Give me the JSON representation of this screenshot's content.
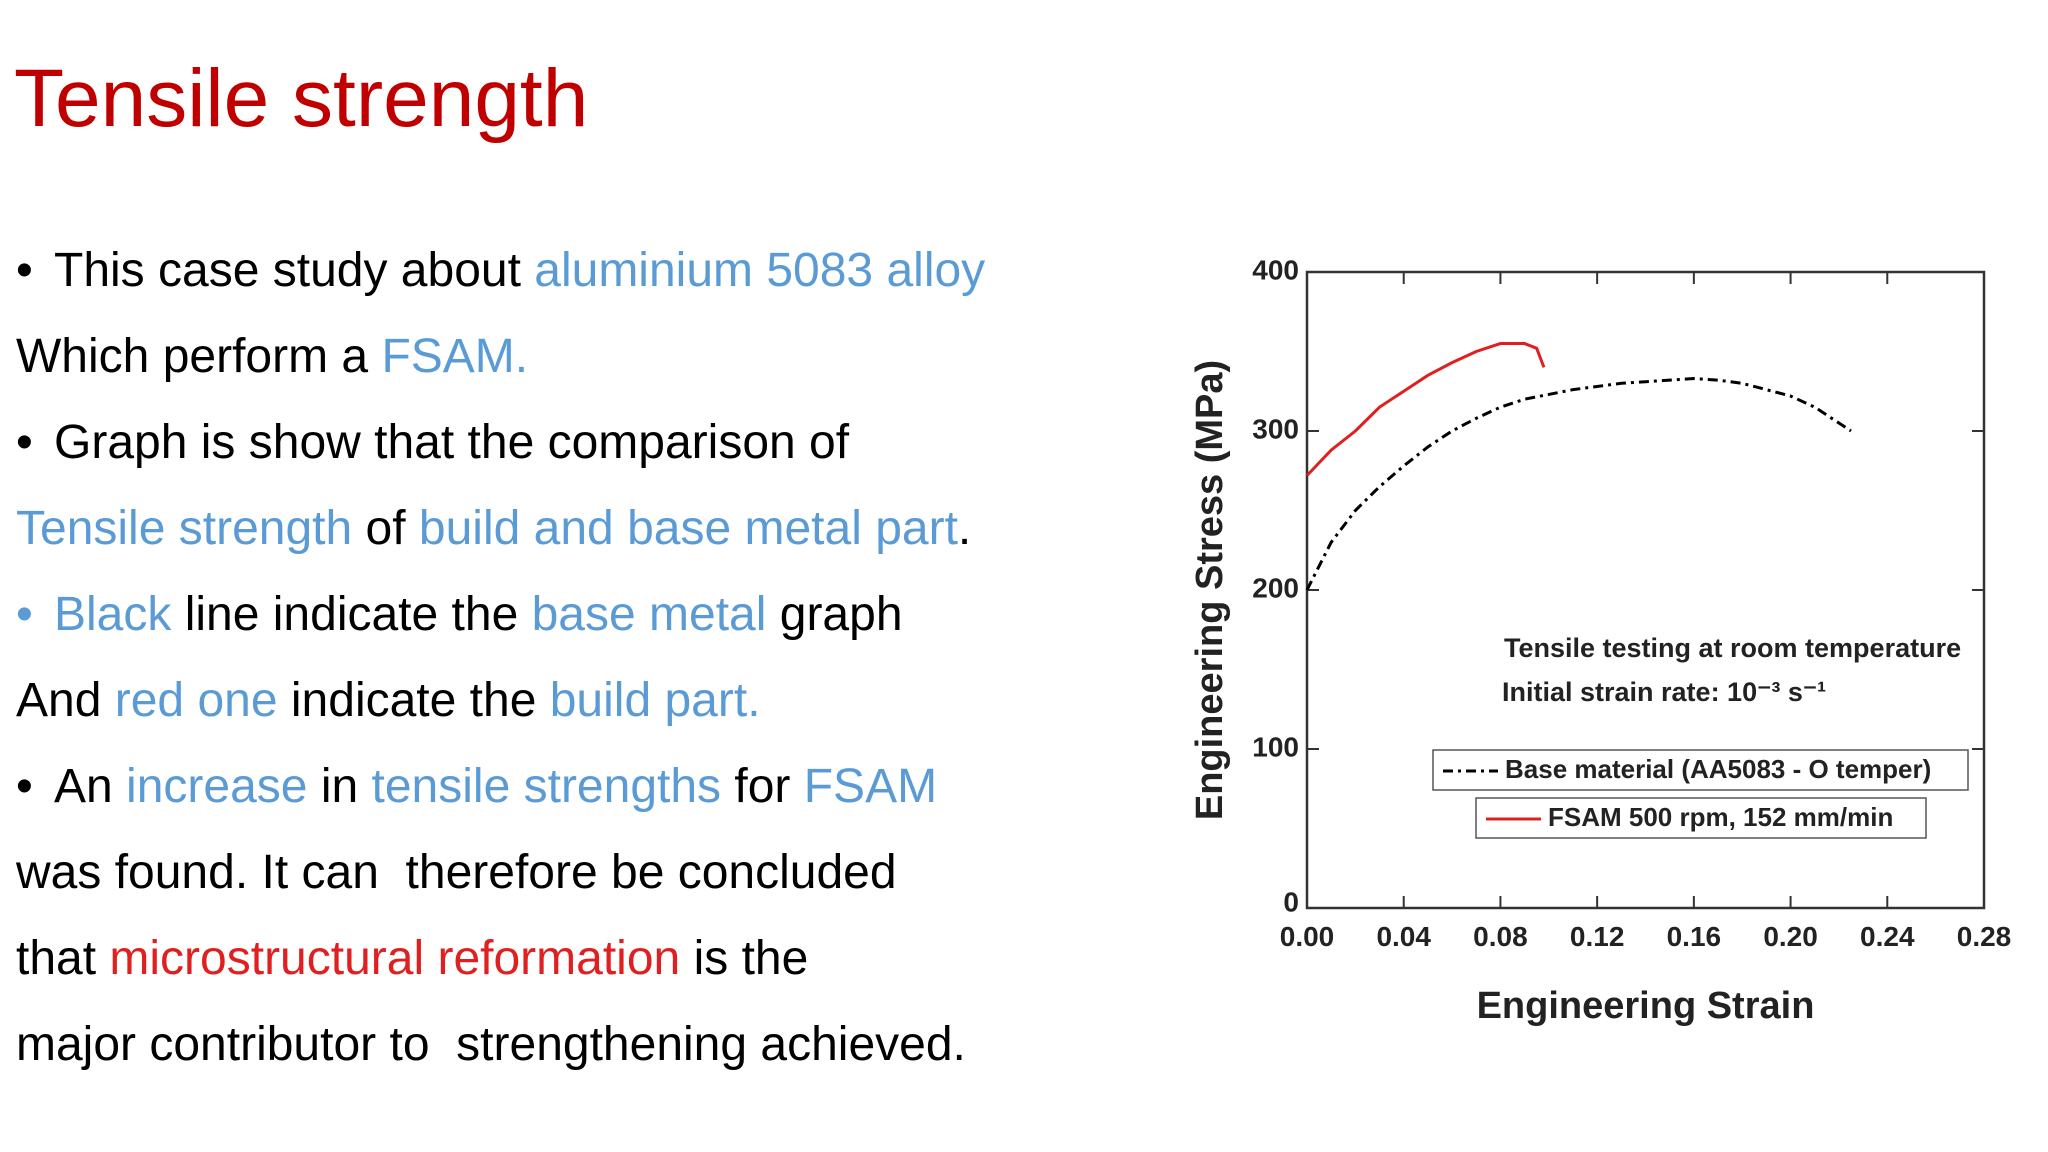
{
  "title": "Tensile strength",
  "lines": [
    {
      "bullet_color": "#000000",
      "segments": [
        {
          "text": "This case study about ",
          "color": "#000000"
        },
        {
          "text": "aluminium 5083 alloy",
          "color": "#5b9bd5"
        }
      ]
    },
    {
      "segments": [
        {
          "text": "Which perform a ",
          "color": "#000000"
        },
        {
          "text": "FSAM.",
          "color": "#5b9bd5"
        }
      ]
    },
    {
      "bullet_color": "#000000",
      "segments": [
        {
          "text": "Graph is show that the comparison of",
          "color": "#000000"
        }
      ]
    },
    {
      "segments": [
        {
          "text": "Tensile strength",
          "color": "#5b9bd5"
        },
        {
          "text": " of ",
          "color": "#000000"
        },
        {
          "text": "build and base metal part",
          "color": "#5b9bd5"
        },
        {
          "text": ".",
          "color": "#000000"
        }
      ]
    },
    {
      "bullet_color": "#5b9bd5",
      "segments": [
        {
          "text": "Black",
          "color": "#5b9bd5"
        },
        {
          "text": " line indicate the ",
          "color": "#000000"
        },
        {
          "text": "base metal",
          "color": "#5b9bd5"
        },
        {
          "text": " graph",
          "color": "#000000"
        }
      ]
    },
    {
      "segments": [
        {
          "text": "And ",
          "color": "#000000"
        },
        {
          "text": "red one",
          "color": "#5b9bd5"
        },
        {
          "text": " indicate the ",
          "color": "#000000"
        },
        {
          "text": "build part.",
          "color": "#5b9bd5"
        }
      ]
    },
    {
      "bullet_color": "#000000",
      "segments": [
        {
          "text": "An ",
          "color": "#000000"
        },
        {
          "text": "increase",
          "color": "#5b9bd5"
        },
        {
          "text": " in ",
          "color": "#000000"
        },
        {
          "text": "tensile strengths",
          "color": "#5b9bd5"
        },
        {
          "text": " for ",
          "color": "#000000"
        },
        {
          "text": "FSAM",
          "color": "#5b9bd5"
        }
      ]
    },
    {
      "segments": [
        {
          "text": "was found. It can  therefore be concluded",
          "color": "#000000"
        }
      ]
    },
    {
      "segments": [
        {
          "text": "that ",
          "color": "#000000"
        },
        {
          "text": "microstructural reformation",
          "color": "#e02020"
        },
        {
          "text": " is the",
          "color": "#000000"
        }
      ]
    },
    {
      "segments": [
        {
          "text": "major contributor to  strengthening achieved.",
          "color": "#000000"
        }
      ]
    }
  ],
  "chart_data": {
    "type": "line",
    "xlabel": "Engineering Strain",
    "ylabel": "Engineering Stress (MPa)",
    "annotations": [
      "Tensile testing at room temperature",
      "Initial strain rate: 10⁻³ s⁻¹"
    ],
    "xlim": [
      0,
      0.28
    ],
    "ylim": [
      0,
      400
    ],
    "xticks": [
      {
        "value": 0,
        "label": "0.00"
      },
      {
        "value": 0.04,
        "label": "0.04"
      },
      {
        "value": 0.08,
        "label": "0.08"
      },
      {
        "value": 0.12,
        "label": "0.12"
      },
      {
        "value": 0.16,
        "label": "0.16"
      },
      {
        "value": 0.2,
        "label": "0.20"
      },
      {
        "value": 0.24,
        "label": "0.24"
      },
      {
        "value": 0.28,
        "label": "0.28"
      }
    ],
    "yticks": [
      0,
      100,
      200,
      300,
      400
    ],
    "series": [
      {
        "name": "Base material (AA5083 - O temper)",
        "color": "#000000",
        "style": "dashdot",
        "x": [
          0,
          0.01,
          0.02,
          0.03,
          0.04,
          0.05,
          0.06,
          0.07,
          0.08,
          0.09,
          0.1,
          0.11,
          0.12,
          0.13,
          0.14,
          0.15,
          0.16,
          0.17,
          0.18,
          0.19,
          0.2,
          0.21,
          0.22,
          0.225
        ],
        "values": [
          200,
          230,
          250,
          265,
          278,
          290,
          300,
          308,
          315,
          320,
          323,
          326,
          328,
          330,
          331,
          332,
          333,
          332,
          330,
          326,
          322,
          315,
          305,
          300
        ]
      },
      {
        "name": "FSAM 500 rpm, 152 mm/min",
        "color": "#e02020",
        "style": "solid",
        "x": [
          0,
          0.01,
          0.02,
          0.03,
          0.04,
          0.05,
          0.06,
          0.07,
          0.08,
          0.09,
          0.095,
          0.098
        ],
        "values": [
          272,
          288,
          300,
          315,
          325,
          335,
          343,
          350,
          355,
          355,
          352,
          340
        ]
      }
    ]
  }
}
